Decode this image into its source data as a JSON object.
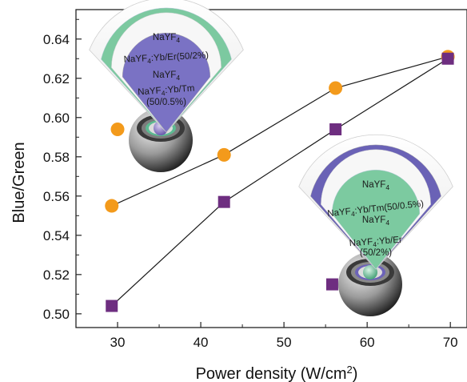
{
  "chart_data": {
    "type": "scatter",
    "xlabel_main": "Power density (W/cm",
    "xlabel_sup": "2",
    "xlabel_end": ")",
    "ylabel": "Blue/Green",
    "xlim": [
      25,
      72
    ],
    "ylim": [
      0.493,
      0.655
    ],
    "xticks": [
      30,
      40,
      50,
      60,
      70
    ],
    "yticks": [
      0.5,
      0.52,
      0.54,
      0.56,
      0.58,
      0.6,
      0.62,
      0.64
    ],
    "colors": {
      "orange": "#f39a1b",
      "purple": "#6e2e80"
    },
    "series": [
      {
        "marker": "circle",
        "color": "#f39a1b",
        "connected": [
          {
            "x": 29.3,
            "y": 0.555
          },
          {
            "x": 42.8,
            "y": 0.581
          },
          {
            "x": 56.2,
            "y": 0.615
          },
          {
            "x": 69.7,
            "y": 0.631
          }
        ],
        "outliers": [
          {
            "x": 30.0,
            "y": 0.594
          }
        ]
      },
      {
        "marker": "square",
        "color": "#6e2e80",
        "connected": [
          {
            "x": 29.3,
            "y": 0.504
          },
          {
            "x": 42.8,
            "y": 0.557
          },
          {
            "x": 56.2,
            "y": 0.594
          },
          {
            "x": 69.7,
            "y": 0.63
          }
        ],
        "outliers": [
          {
            "x": 55.8,
            "y": 0.515
          }
        ]
      }
    ],
    "insets": [
      {
        "name": "core-shell-inset-upper",
        "layers": [
          {
            "text": "NaYF",
            "sub": "4",
            "rest": ""
          },
          {
            "text": "NaYF",
            "sub": "4",
            "rest": ":Yb/Er(50/2%)"
          },
          {
            "text": "NaYF",
            "sub": "4",
            "rest": ""
          },
          {
            "text": "NaYF",
            "sub": "4",
            "rest": ":Yb/Tm",
            "line2": "(50/0.5%)"
          }
        ]
      },
      {
        "name": "core-shell-inset-lower",
        "layers": [
          {
            "text": "NaYF",
            "sub": "4",
            "rest": ""
          },
          {
            "text": "NaYF",
            "sub": "4",
            "rest": ":Yb/Tm(50/0.5%)"
          },
          {
            "text": "NaYF",
            "sub": "4",
            "rest": ""
          },
          {
            "text": "NaYF",
            "sub": "4",
            "rest": ":Yb/Er",
            "line2": "(50/2%)"
          }
        ]
      }
    ]
  }
}
